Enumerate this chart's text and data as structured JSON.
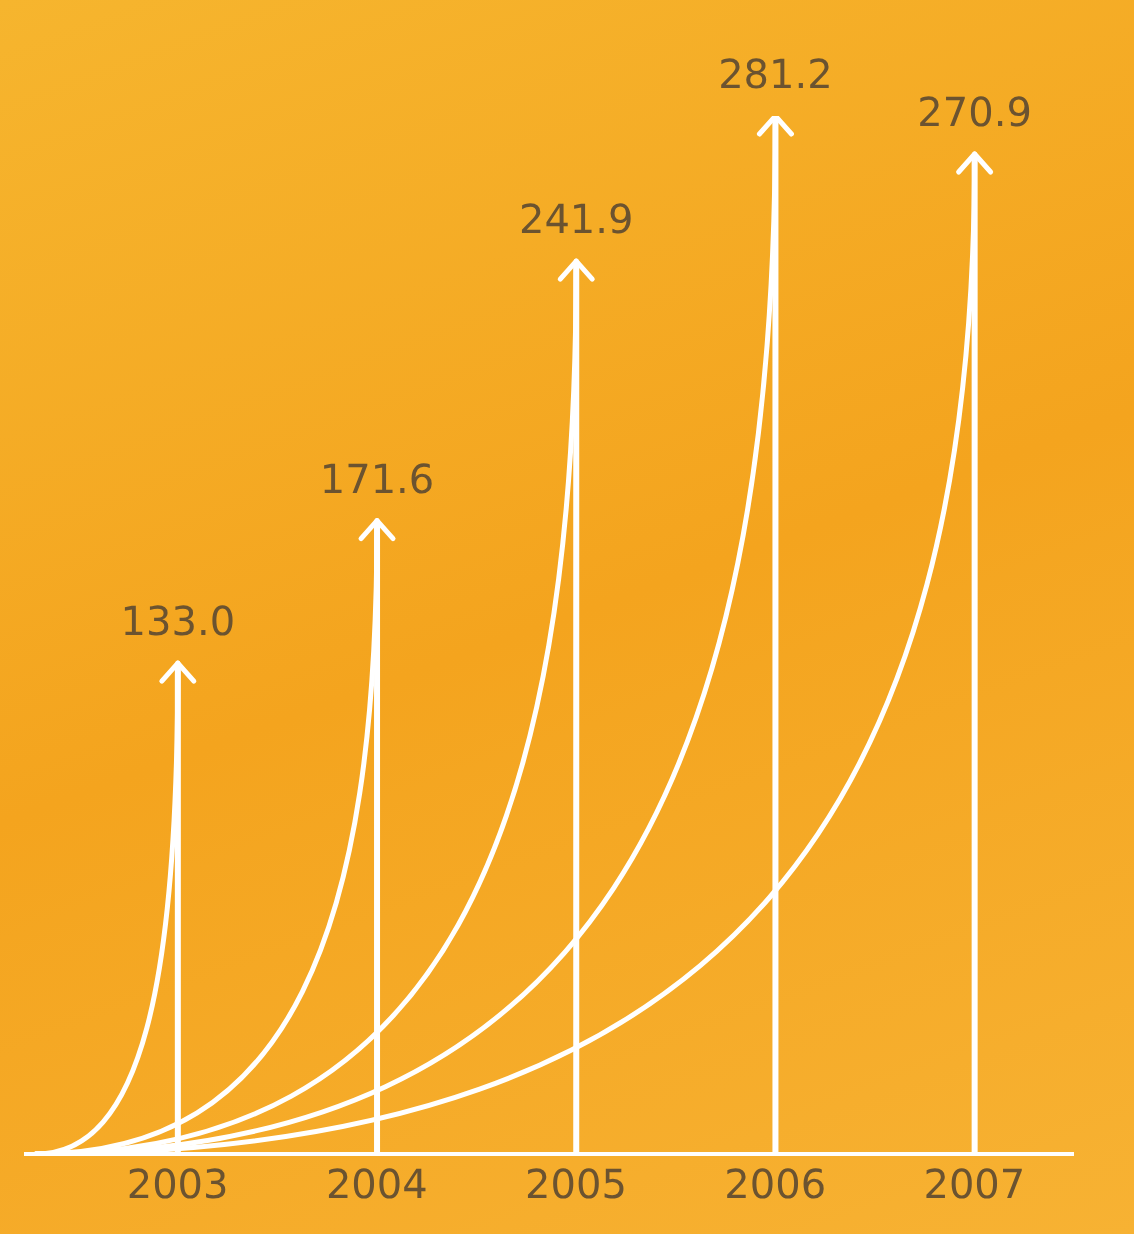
{
  "chart_data": {
    "type": "bar",
    "categories": [
      "2003",
      "2004",
      "2005",
      "2006",
      "2007"
    ],
    "values": [
      133.0,
      171.6,
      241.9,
      281.2,
      270.9
    ],
    "value_labels": [
      "133.0",
      "171.6",
      "241.9",
      "281.2",
      "270.9"
    ],
    "color": "#ffffff"
  }
}
